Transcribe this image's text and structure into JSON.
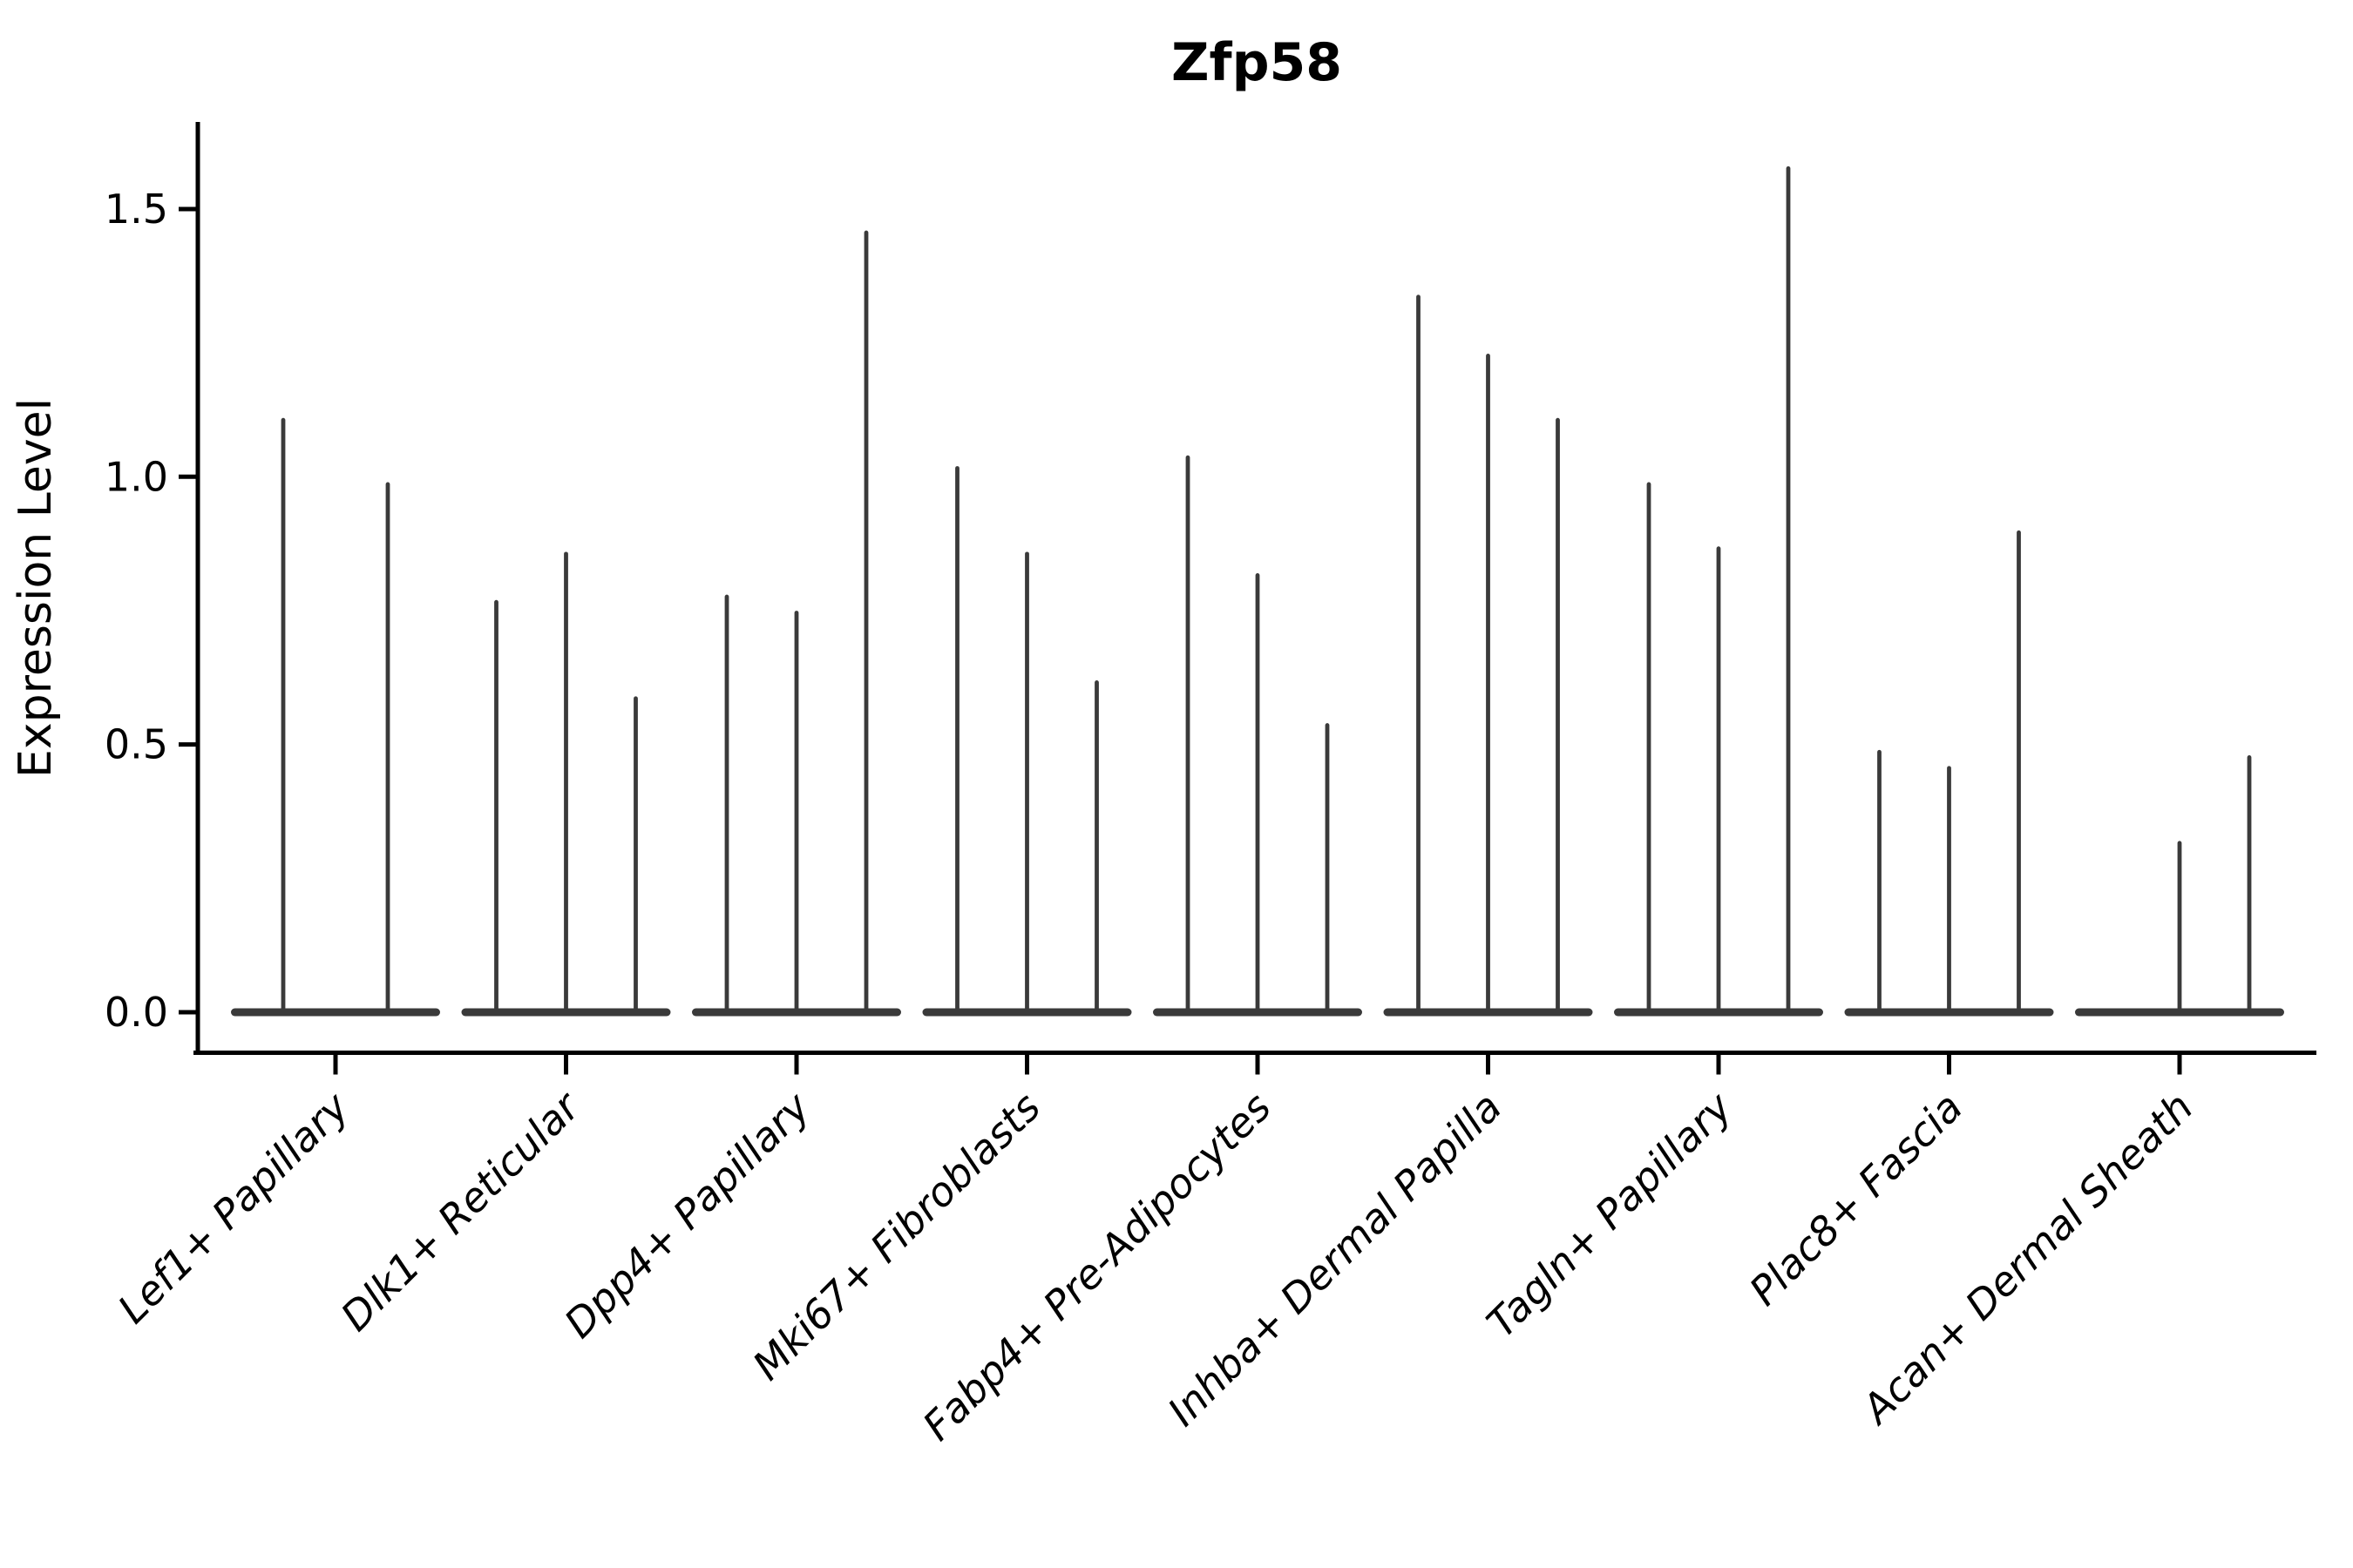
{
  "title": "Zfp58",
  "ylabel": "Expression Level",
  "colors": {
    "violin": "#3a3a3a",
    "axis": "#000000",
    "text": "#000000",
    "background": "#ffffff"
  },
  "chart_data": {
    "type": "violin",
    "title": "Zfp58",
    "xlabel": "",
    "ylabel": "Expression Level",
    "ylim": [
      0,
      1.66
    ],
    "grid": false,
    "legend": "none",
    "ytick_values": [
      0.0,
      0.5,
      1.0,
      1.5
    ],
    "ytick_labels": [
      "0.0",
      "0.5",
      "1.0",
      "1.5"
    ],
    "categories": [
      "Lef1+ Papillary",
      "Dlk1+ Reticular",
      "Dpp4+ Papillary",
      "Mki67+ Fibroblasts",
      "Fabp4+ Pre-Adipocytes",
      "Inhba+ Dermal Papilla",
      "Tagln+ Papillary",
      "Plac8+ Fascia",
      "Acan+ Dermal Sheath"
    ],
    "series": [
      {
        "category": "Lef1+ Papillary",
        "violin_peaks": [
          1.11,
          0.99
        ]
      },
      {
        "category": "Dlk1+ Reticular",
        "violin_peaks": [
          0.77,
          0.86,
          0.59
        ]
      },
      {
        "category": "Dpp4+ Papillary",
        "violin_peaks": [
          0.78,
          0.75,
          1.46
        ]
      },
      {
        "category": "Mki67+ Fibroblasts",
        "violin_peaks": [
          1.02,
          0.86,
          0.62
        ]
      },
      {
        "category": "Fabp4+ Pre-Adipocytes",
        "violin_peaks": [
          1.04,
          0.82,
          0.54
        ]
      },
      {
        "category": "Inhba+ Dermal Papilla",
        "violin_peaks": [
          1.34,
          1.23,
          1.11
        ]
      },
      {
        "category": "Tagln+ Papillary",
        "violin_peaks": [
          0.99,
          0.87,
          1.58
        ]
      },
      {
        "category": "Plac8+ Fascia",
        "violin_peaks": [
          0.49,
          0.46,
          0.9
        ]
      },
      {
        "category": "Acan+ Dermal Sheath",
        "violin_peaks": [
          0.0,
          0.32,
          0.48
        ]
      }
    ],
    "description": "Violin plot of Zfp58 expression level per fibroblast cluster; each cluster contains 2-3 very thin violins whose maxima are listed in violin_peaks (0 = flat violin at baseline)."
  }
}
